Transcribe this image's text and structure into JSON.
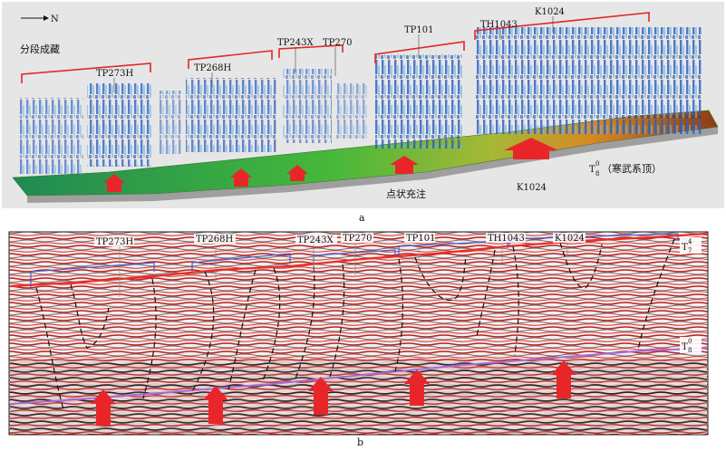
{
  "panel_a": {
    "caption": "a",
    "compass": "N",
    "title": "分段成藏",
    "wells": [
      "TP273H",
      "TP268H",
      "TP243X",
      "TP270",
      "TP101",
      "TH1043",
      "K1024"
    ],
    "bottom_well": "K1024",
    "note": "点状充注",
    "horizon_label": "T",
    "horizon_sub": "8",
    "horizon_sup": "0",
    "horizon_desc": "（寒武系顶）"
  },
  "panel_b": {
    "caption": "b",
    "wells": [
      "TP273H",
      "TP268H",
      "TP243X",
      "TP270",
      "TP101",
      "TH1043",
      "K1024"
    ],
    "top_label": "T",
    "top_sub": "7",
    "top_sup": "4",
    "bottom_label": "T",
    "bottom_sub": "8",
    "bottom_sup": "0"
  },
  "colors": {
    "arrow": "#e8262a",
    "bracket": "#e32626",
    "horizon_top": "#ef2b23",
    "horizon_bottom": "#a96ad8",
    "fault": "#111111",
    "surface_green": "#2fa23a",
    "surface_orange": "#d8841f",
    "volume_blue": "#2f63c6"
  }
}
